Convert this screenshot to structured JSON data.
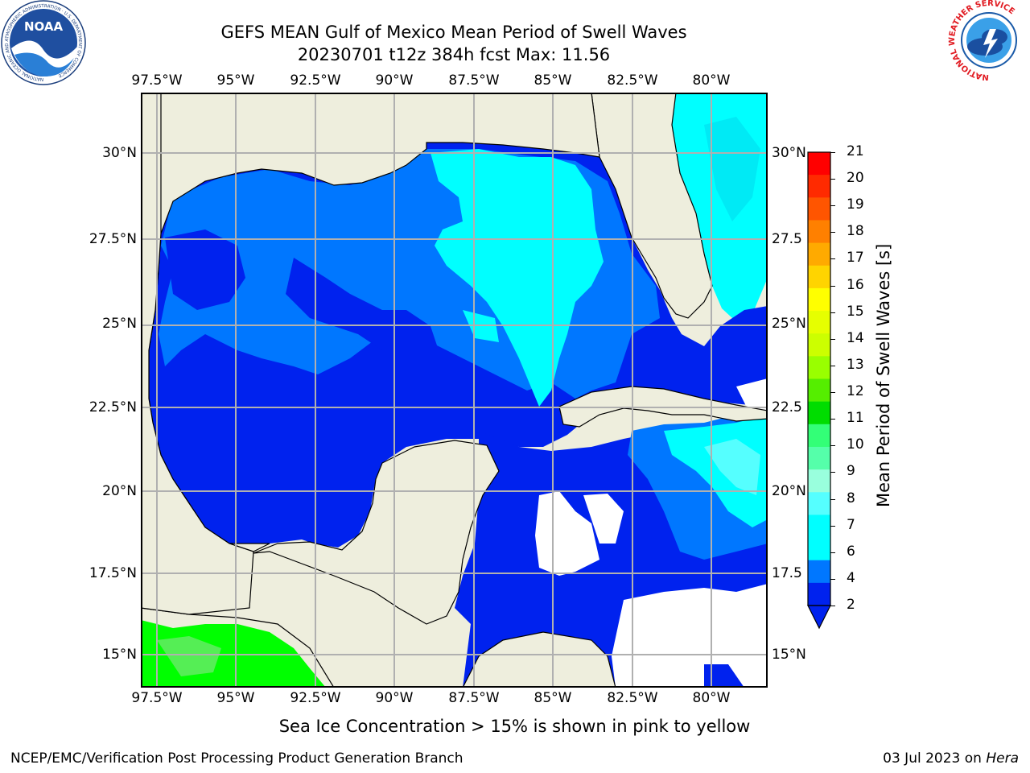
{
  "title": {
    "line1": "GEFS MEAN Gulf of Mexico Mean Period of Swell Waves",
    "line2": "20230701 t12z 384h fcst   Max: 11.56"
  },
  "map": {
    "lon_labels": [
      "97.5°W",
      "95°W",
      "92.5°W",
      "90°W",
      "87.5°W",
      "85°W",
      "82.5°W",
      "80°W"
    ],
    "lat_labels_left": [
      "30°N",
      "27.5°N",
      "25°N",
      "22.5°N",
      "20°N",
      "17.5°N",
      "15°N"
    ],
    "lat_labels_right": [
      "30°N",
      "27.5",
      "25°N",
      "22.5",
      "20°N",
      "17.5",
      "15°N"
    ]
  },
  "colorbar": {
    "label": "Mean Period of Swell Waves [s]",
    "ticks": [
      "21",
      "20",
      "19",
      "18",
      "17",
      "16",
      "15",
      "14",
      "13",
      "12",
      "11",
      "10",
      "9",
      "8",
      "7",
      "6",
      "4",
      "2"
    ],
    "colors": [
      "#ff0000",
      "#ff2a00",
      "#ff5500",
      "#ff8000",
      "#ffaa00",
      "#ffd400",
      "#ffff00",
      "#e6ff00",
      "#ccff00",
      "#99ff00",
      "#55ee00",
      "#00dd00",
      "#33ff77",
      "#55ffaa",
      "#99ffdd",
      "#55ffff",
      "#00ffff",
      "#00ffff",
      "#0077ff",
      "#0022ee"
    ]
  },
  "note": "Sea Ice Concentration > 15% is shown in pink to yellow",
  "footer": {
    "left": "NCEP/EMC/Verification Post Processing Product Generation Branch",
    "right_date": "03 Jul 2023 on ",
    "right_host": "Hera"
  },
  "logos": {
    "noaa_text": "NOAA",
    "noaa_ring_text": "NATIONAL OCEANIC AND ATMOSPHERIC ADMINISTRATION · U.S. DEPARTMENT OF COMMERCE",
    "nws_ring_text": "NATIONAL WEATHER SERVICE"
  }
}
